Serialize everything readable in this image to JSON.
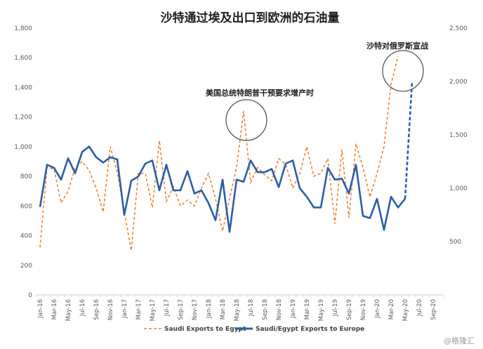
{
  "chart_data": {
    "type": "line",
    "title": "沙特通过埃及出口到欧洲的石油量",
    "categories": [
      "Jan-16",
      "Feb-16",
      "Mar-16",
      "Apr-16",
      "May-16",
      "Jun-16",
      "Jul-16",
      "Aug-16",
      "Sep-16",
      "Oct-16",
      "Nov-16",
      "Dec-16",
      "Jan-17",
      "Feb-17",
      "Mar-17",
      "Apr-17",
      "May-17",
      "Jun-17",
      "Jul-17",
      "Aug-17",
      "Sep-17",
      "Oct-17",
      "Nov-17",
      "Dec-17",
      "Jan-18",
      "Feb-18",
      "Mar-18",
      "Apr-18",
      "May-18",
      "Jun-18",
      "Jul-18",
      "Aug-18",
      "Sep-18",
      "Oct-18",
      "Nov-18",
      "Dec-18",
      "Jan-19",
      "Feb-19",
      "Mar-19",
      "Apr-19",
      "May-19",
      "Jun-19",
      "Jul-19",
      "Aug-19",
      "Sep-19",
      "Oct-19",
      "Nov-19",
      "Dec-19",
      "Jan-20",
      "Feb-20",
      "Mar-20",
      "Apr-20",
      "May-20",
      "Jun-20",
      "Jul-20",
      "Aug-20",
      "Sep-20",
      "Oct-20"
    ],
    "x_tick_labels": [
      "Jan-16",
      "Mar-16",
      "May-16",
      "Jul-16",
      "Sep-16",
      "Nov-16",
      "Jan-17",
      "Mar-17",
      "May-17",
      "Jul-17",
      "Sep-17",
      "Nov-17",
      "Jan-18",
      "Mar-18",
      "May-18",
      "Jul-18",
      "Sep-18",
      "Nov-18",
      "Jan-19",
      "Mar-19",
      "May-19",
      "Jul-19",
      "Sep-19",
      "Nov-19",
      "Jan-20",
      "Mar-20",
      "May-20",
      "Jul-20",
      "Sep-20"
    ],
    "left_axis": {
      "ylim": [
        0,
        1800
      ],
      "ticks": [
        "0",
        "200",
        "400",
        "600",
        "800",
        "1,000",
        "1,200",
        "1,400",
        "1,600",
        "1,800"
      ]
    },
    "right_axis": {
      "ylim": [
        0,
        2500
      ],
      "ticks": [
        "500",
        "1,000",
        "1,500",
        "2,000",
        "2,500"
      ]
    },
    "series": [
      {
        "name": "Saudi Exports to Egypt",
        "axis": "left",
        "style": "dashed",
        "color": "#ED7D31",
        "values": [
          320,
          860,
          850,
          620,
          700,
          860,
          900,
          840,
          720,
          560,
          1000,
          830,
          560,
          300,
          820,
          820,
          590,
          1040,
          630,
          730,
          600,
          640,
          600,
          720,
          820,
          650,
          430,
          650,
          860,
          1240,
          760,
          860,
          810,
          770,
          920,
          880,
          720,
          820,
          1000,
          800,
          820,
          920,
          480,
          980,
          520,
          1020,
          860,
          660,
          820,
          1000,
          1420,
          1610,
          null,
          null,
          null,
          null,
          null,
          null
        ]
      },
      {
        "name": "Saudi/Egypt Exports to Europe",
        "axis": "right",
        "style": "solid",
        "color": "#2E5CA8",
        "values": [
          825,
          1220,
          1190,
          1080,
          1280,
          1140,
          1340,
          1390,
          1290,
          1240,
          1290,
          1270,
          750,
          1070,
          1110,
          1230,
          1260,
          980,
          1220,
          980,
          980,
          1160,
          950,
          980,
          860,
          700,
          1080,
          590,
          1080,
          1060,
          1260,
          1150,
          1150,
          1180,
          1010,
          1230,
          1260,
          1000,
          920,
          820,
          820,
          1190,
          1080,
          1090,
          950,
          1220,
          740,
          720,
          900,
          610,
          920,
          820,
          900,
          2000,
          null,
          null,
          null,
          null
        ]
      }
    ],
    "annotations": [
      {
        "text": "美国总统特朗普干预要求增产时"
      },
      {
        "text": "沙特对俄罗斯宣战"
      }
    ],
    "legend_position": "bottom",
    "grid": false
  },
  "watermark": "@格隆汇",
  "colors": {
    "egypt": "#ED7D31",
    "europe": "#2E5CA8",
    "circle": "#555555"
  }
}
